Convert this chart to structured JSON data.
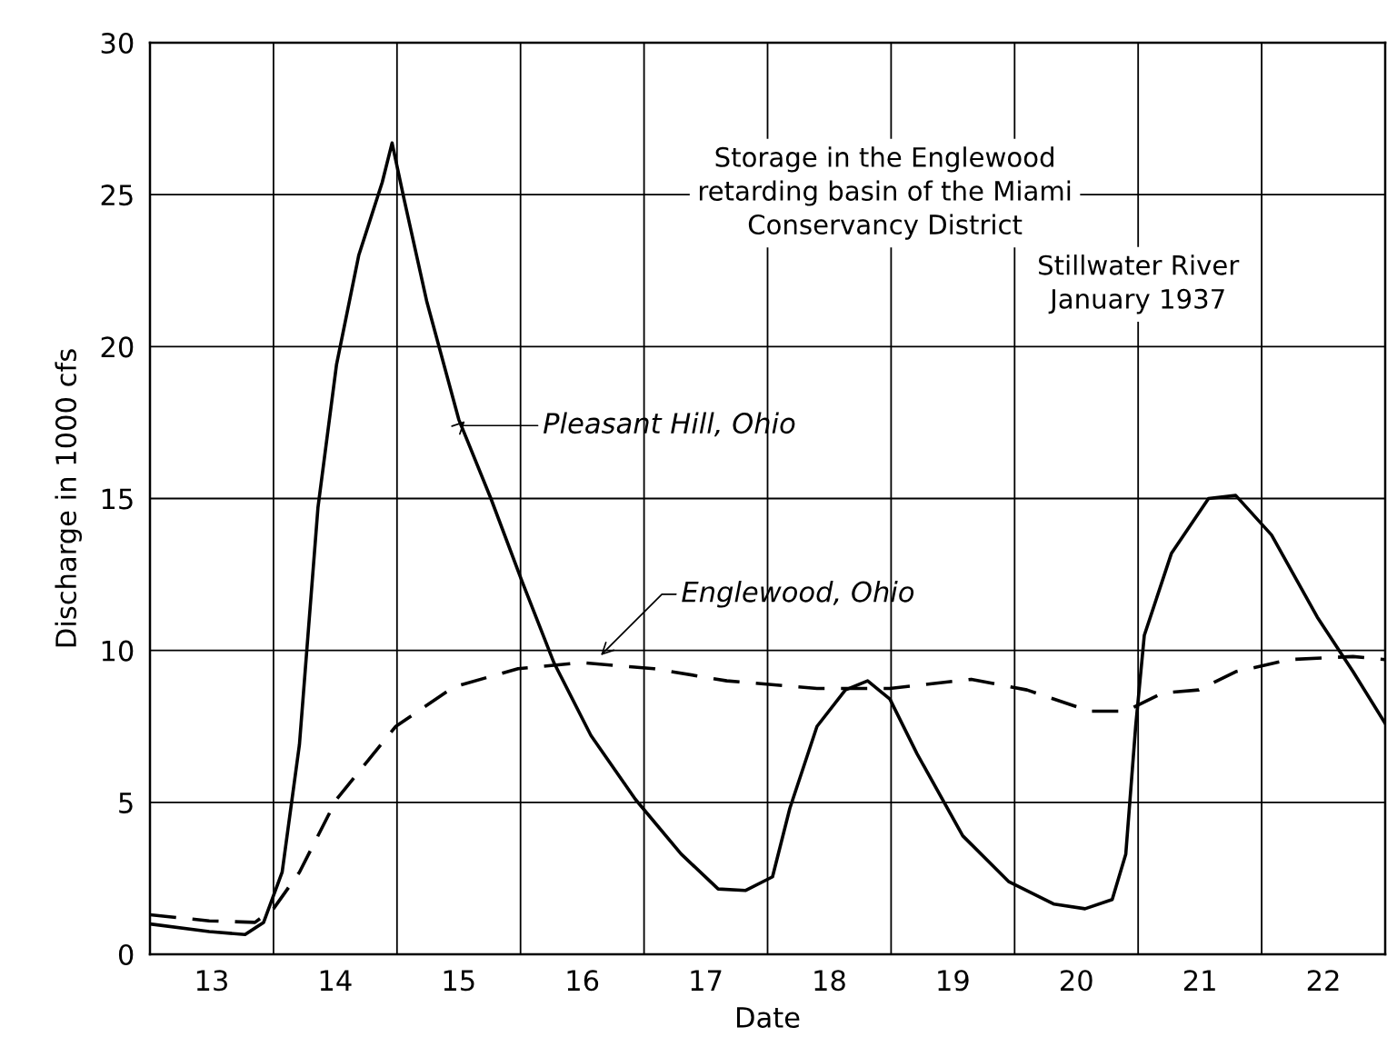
{
  "chart_data": {
    "type": "line",
    "xlabel": "Date",
    "ylabel": "Discharge in 1000 cfs",
    "annotations": [
      "Storage in the Englewood\nretarding basin of the Miami\nConservancy District",
      "Stillwater River\nJanuary 1937",
      "Pleasant Hill, Ohio",
      "Englewood, Ohio"
    ],
    "series": [
      {
        "color": "#000000",
        "line_style": "solid",
        "x": [
          13.0,
          13.48,
          13.77,
          13.92,
          14.07,
          14.21,
          14.36,
          14.51,
          14.69,
          14.88,
          14.96,
          15.06,
          15.24,
          15.5,
          15.76,
          16.01,
          16.27,
          16.57,
          16.93,
          17.3,
          17.6,
          17.82,
          18.04,
          18.18,
          18.4,
          18.63,
          18.81,
          18.99,
          19.21,
          19.58,
          19.95,
          20.32,
          20.57,
          20.79,
          20.9,
          20.98,
          21.05,
          21.27,
          21.57,
          21.79,
          22.08,
          22.45,
          22.74,
          23.0
        ],
        "values": [
          1.0,
          0.75,
          0.65,
          1.05,
          2.7,
          6.9,
          14.7,
          19.4,
          23.0,
          25.4,
          26.7,
          24.8,
          21.5,
          17.6,
          15.0,
          12.3,
          9.6,
          7.2,
          5.1,
          3.3,
          2.15,
          2.1,
          2.55,
          4.8,
          7.5,
          8.7,
          9.0,
          8.4,
          6.6,
          3.9,
          2.4,
          1.65,
          1.5,
          1.8,
          3.3,
          7.5,
          10.5,
          13.2,
          15.0,
          15.1,
          13.8,
          11.1,
          9.3,
          7.6
        ]
      },
      {
        "color": "#000000",
        "line_style": "dashed",
        "x": [
          13.0,
          13.48,
          13.85,
          14.0,
          14.21,
          14.51,
          14.99,
          15.46,
          15.98,
          16.49,
          17.08,
          17.67,
          18.4,
          18.99,
          19.65,
          20.1,
          20.61,
          20.9,
          21.2,
          21.49,
          21.79,
          22.23,
          22.74,
          23.0
        ],
        "values": [
          1.3,
          1.1,
          1.05,
          1.5,
          2.7,
          5.1,
          7.5,
          8.8,
          9.4,
          9.6,
          9.4,
          9.0,
          8.75,
          8.75,
          9.05,
          8.7,
          8.0,
          8.0,
          8.6,
          8.7,
          9.3,
          9.7,
          9.8,
          9.7
        ]
      }
    ],
    "xlim": [
      13,
      23
    ],
    "xticks": [
      {
        "value": 13,
        "label": null
      },
      {
        "value": 13.5,
        "label": "13"
      },
      {
        "value": 14,
        "label": null
      },
      {
        "value": 14.5,
        "label": "14"
      },
      {
        "value": 15,
        "label": null
      },
      {
        "value": 15.5,
        "label": "15"
      },
      {
        "value": 16,
        "label": null
      },
      {
        "value": 16.5,
        "label": "16"
      },
      {
        "value": 17,
        "label": null
      },
      {
        "value": 17.5,
        "label": "17"
      },
      {
        "value": 18,
        "label": null
      },
      {
        "value": 18.5,
        "label": "18"
      },
      {
        "value": 19,
        "label": null
      },
      {
        "value": 19.5,
        "label": "19"
      },
      {
        "value": 20,
        "label": null
      },
      {
        "value": 20.5,
        "label": "20"
      },
      {
        "value": 21,
        "label": null
      },
      {
        "value": 21.5,
        "label": "21"
      },
      {
        "value": 22,
        "label": null
      },
      {
        "value": 22.5,
        "label": "22"
      },
      {
        "value": 23,
        "label": null
      }
    ],
    "ylim": [
      0,
      30
    ],
    "yticks": [
      0,
      5,
      10,
      15,
      20,
      25,
      30
    ],
    "grid": true,
    "legend": false
  }
}
